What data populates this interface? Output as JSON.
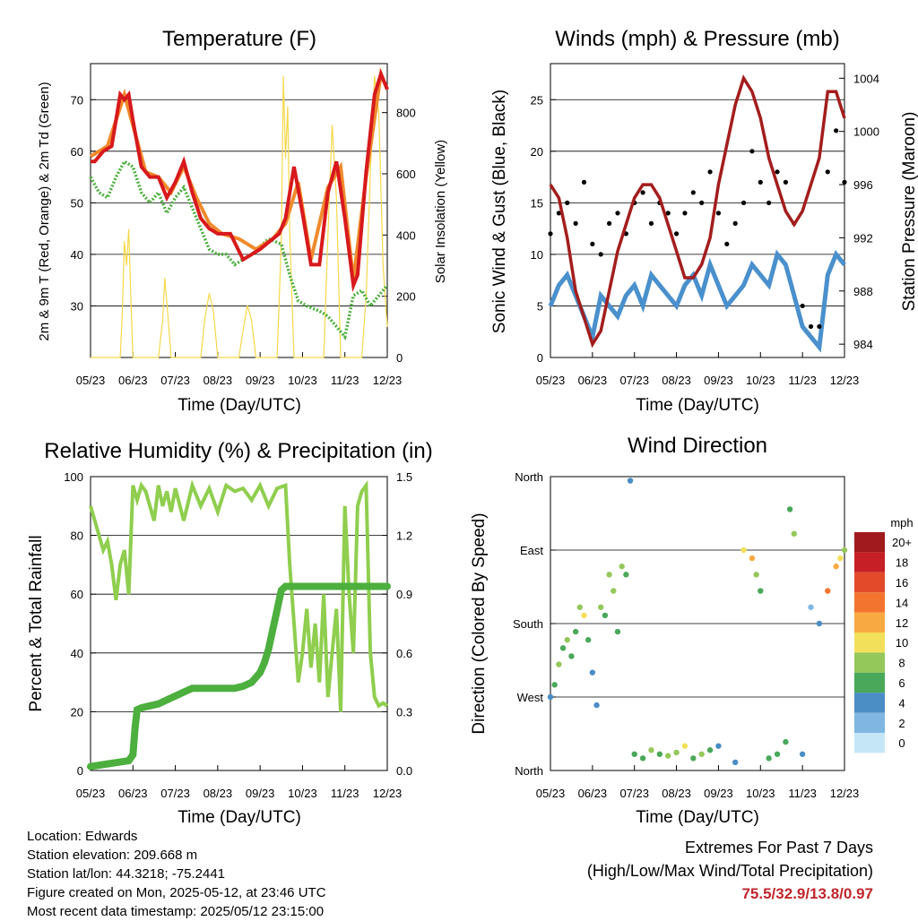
{
  "colors": {
    "temp_2m": "#d7191c",
    "temp_9m": "#f08a2c",
    "dewpoint": "#4caf3e",
    "solar": "#f5d84a",
    "wind": "#4a90cc",
    "gust": "#000000",
    "pressure": "#a31d1d",
    "rh": "#8fce4e",
    "precip": "#4caf3e",
    "extremes": "#c0262d"
  },
  "chart_data": [
    {
      "id": "temperature",
      "type": "line",
      "title": "Temperature (F)",
      "xlabel": "Time (Day/UTC)",
      "ylabel": "2m & 9m T (Red, Orange) & 2m Td (Green)",
      "y2label": "Solar Insolation (Yellow)",
      "x_ticks": [
        "05/23",
        "06/23",
        "07/23",
        "08/23",
        "09/23",
        "10/23",
        "11/23",
        "12/23"
      ],
      "xlim": [
        0,
        7
      ],
      "ylim": [
        20,
        77
      ],
      "y_ticks": [
        30,
        40,
        50,
        60,
        70
      ],
      "y2lim": [
        0,
        960
      ],
      "y2_ticks": [
        0,
        200,
        400,
        600,
        800
      ],
      "grid": true,
      "series": [
        {
          "name": "2m T",
          "axis": "y",
          "x": [
            0,
            0.1,
            0.3,
            0.5,
            0.7,
            0.8,
            0.9,
            1.0,
            1.2,
            1.4,
            1.6,
            1.8,
            2.0,
            2.2,
            2.4,
            2.6,
            2.8,
            3.0,
            3.3,
            3.6,
            4.0,
            4.3,
            4.45,
            4.6,
            4.8,
            5.0,
            5.2,
            5.4,
            5.6,
            5.8,
            6.0,
            6.2,
            6.3,
            6.5,
            6.7,
            6.85,
            7.0
          ],
          "values": [
            58,
            58,
            60,
            61,
            71,
            70,
            71,
            66,
            57,
            55,
            55,
            51,
            54,
            58,
            52,
            47,
            45,
            44,
            44,
            39,
            41,
            43,
            44,
            47,
            57,
            48,
            38,
            38,
            52,
            58,
            47,
            34,
            36,
            56,
            71,
            75,
            72
          ]
        },
        {
          "name": "9m T",
          "axis": "y",
          "x": [
            0,
            0.2,
            0.4,
            0.6,
            0.8,
            1.0,
            1.3,
            1.6,
            1.9,
            2.2,
            2.5,
            2.8,
            3.1,
            3.5,
            3.9,
            4.3,
            4.6,
            4.9,
            5.2,
            5.6,
            5.9,
            6.2,
            6.5,
            6.85,
            7.0
          ],
          "values": [
            59,
            60,
            61,
            66,
            71,
            65,
            56,
            55,
            52,
            57,
            51,
            46,
            44,
            43,
            41,
            43,
            46,
            54,
            39,
            53,
            57,
            35,
            55,
            75,
            72
          ]
        },
        {
          "name": "2m Td",
          "axis": "y",
          "x": [
            0,
            0.2,
            0.4,
            0.6,
            0.8,
            1.0,
            1.2,
            1.4,
            1.6,
            1.8,
            2.0,
            2.2,
            2.4,
            2.6,
            2.8,
            3.0,
            3.2,
            3.4,
            3.8,
            4.2,
            4.5,
            4.7,
            4.9,
            5.1,
            5.4,
            5.6,
            5.8,
            6.0,
            6.2,
            6.4,
            6.6,
            6.8,
            7.0
          ],
          "values": [
            55,
            52,
            51,
            55,
            58,
            57,
            52,
            50,
            52,
            48,
            51,
            53,
            49,
            45,
            41,
            40,
            40,
            38,
            40,
            43,
            42,
            36,
            31,
            30,
            29,
            28,
            26,
            24,
            32,
            33,
            30,
            32,
            34
          ]
        },
        {
          "name": "Solar Insolation",
          "axis": "y2",
          "x": [
            0,
            0.7,
            0.75,
            0.8,
            0.85,
            0.9,
            0.95,
            1.0,
            1.6,
            1.7,
            1.75,
            1.8,
            1.85,
            1.9,
            2.6,
            2.7,
            2.8,
            2.9,
            3.0,
            3.5,
            3.6,
            3.7,
            3.8,
            3.9,
            4.4,
            4.5,
            4.55,
            4.6,
            4.65,
            4.7,
            4.8,
            5.0,
            5.5,
            5.6,
            5.7,
            5.8,
            5.9,
            6.2,
            6.4,
            6.5,
            6.6,
            6.7,
            6.8,
            6.9,
            7.0
          ],
          "values": [
            0,
            0,
            150,
            380,
            300,
            420,
            200,
            0,
            0,
            120,
            260,
            180,
            90,
            0,
            0,
            130,
            210,
            150,
            0,
            0,
            90,
            170,
            120,
            0,
            0,
            380,
            920,
            650,
            820,
            400,
            0,
            0,
            0,
            400,
            760,
            520,
            0,
            0,
            0,
            200,
            600,
            920,
            800,
            300,
            100
          ]
        }
      ]
    },
    {
      "id": "winds",
      "type": "scatter",
      "title": "Winds (mph) & Pressure (mb)",
      "xlabel": "Time (Day/UTC)",
      "ylabel": "Sonic Wind & Gust (Blue, Black)",
      "y2label": "Station Pressure (Maroon)",
      "x_ticks": [
        "05/23",
        "06/23",
        "07/23",
        "08/23",
        "09/23",
        "10/23",
        "11/23",
        "12/23"
      ],
      "xlim": [
        0,
        7
      ],
      "ylim": [
        0,
        28.5
      ],
      "y_ticks": [
        0,
        5,
        10,
        15,
        20,
        25
      ],
      "y2lim": [
        983,
        1005.1
      ],
      "y2_ticks": [
        984,
        988,
        992,
        996,
        1000,
        1004
      ],
      "grid": true,
      "series": [
        {
          "name": "Sonic Wind",
          "x": [
            0,
            0.2,
            0.4,
            0.6,
            0.8,
            1.0,
            1.2,
            1.4,
            1.6,
            1.8,
            2.0,
            2.2,
            2.4,
            2.6,
            2.8,
            3.0,
            3.2,
            3.4,
            3.6,
            3.8,
            4.0,
            4.2,
            4.4,
            4.6,
            4.8,
            5.0,
            5.2,
            5.4,
            5.6,
            5.8,
            6.0,
            6.2,
            6.4,
            6.6,
            6.8,
            7.0
          ],
          "values": [
            5,
            7,
            8,
            6,
            4,
            2,
            6,
            5,
            4,
            6,
            7,
            5,
            8,
            7,
            6,
            5,
            7,
            8,
            6,
            9,
            7,
            5,
            6,
            7,
            9,
            8,
            7,
            10,
            9,
            6,
            3,
            2,
            1,
            8,
            10,
            9
          ]
        },
        {
          "name": "Gust",
          "x": [
            0,
            0.2,
            0.4,
            0.6,
            0.8,
            1.0,
            1.2,
            1.4,
            1.6,
            1.8,
            2.0,
            2.2,
            2.4,
            2.6,
            2.8,
            3.0,
            3.2,
            3.4,
            3.6,
            3.8,
            4.0,
            4.2,
            4.4,
            4.6,
            4.8,
            5.0,
            5.2,
            5.4,
            5.6,
            5.8,
            6.0,
            6.2,
            6.4,
            6.6,
            6.8,
            7.0
          ],
          "values": [
            12,
            14,
            15,
            13,
            17,
            11,
            10,
            13,
            14,
            12,
            15,
            16,
            13,
            15,
            14,
            12,
            14,
            16,
            15,
            18,
            14,
            11,
            13,
            15,
            20,
            17,
            15,
            18,
            17,
            13,
            5,
            3,
            3,
            18,
            22,
            17
          ]
        },
        {
          "name": "Station Pressure",
          "axis": "y2",
          "x": [
            0,
            0.2,
            0.4,
            0.6,
            0.8,
            1.0,
            1.2,
            1.4,
            1.6,
            1.8,
            2.0,
            2.2,
            2.4,
            2.6,
            2.8,
            3.0,
            3.2,
            3.4,
            3.6,
            3.8,
            4.0,
            4.2,
            4.4,
            4.6,
            4.8,
            5.0,
            5.2,
            5.4,
            5.6,
            5.8,
            6.0,
            6.2,
            6.4,
            6.6,
            6.8,
            7.0
          ],
          "values": [
            996,
            995,
            992,
            988,
            986,
            984,
            985,
            988,
            991,
            993,
            995,
            996,
            996,
            995,
            993,
            991,
            989,
            989,
            990,
            992,
            996,
            999,
            1002,
            1004,
            1003,
            1001,
            998,
            996,
            994,
            993,
            994,
            996,
            998,
            1003,
            1003,
            1001
          ]
        }
      ]
    },
    {
      "id": "humidity",
      "type": "line",
      "title": "Relative Humidity (%) & Precipitation (in)",
      "xlabel": "Time (Day/UTC)",
      "ylabel": "Percent & Total Rainfall",
      "x_ticks": [
        "05/23",
        "06/23",
        "07/23",
        "08/23",
        "09/23",
        "10/23",
        "11/23",
        "12/23"
      ],
      "xlim": [
        0,
        7
      ],
      "ylim": [
        0,
        100
      ],
      "y_ticks": [
        0,
        20,
        40,
        60,
        80,
        100
      ],
      "y2lim": [
        0,
        1.5
      ],
      "y2_ticks": [
        "0.0",
        "0.3",
        "0.6",
        "0.9",
        "1.2",
        "1.5"
      ],
      "grid": true,
      "series": [
        {
          "name": "Relative Humidity",
          "x": [
            0,
            0.1,
            0.2,
            0.3,
            0.4,
            0.5,
            0.6,
            0.7,
            0.8,
            0.9,
            1.0,
            1.1,
            1.2,
            1.3,
            1.4,
            1.5,
            1.6,
            1.7,
            1.8,
            1.9,
            2.0,
            2.2,
            2.4,
            2.6,
            2.8,
            3.0,
            3.2,
            3.4,
            3.6,
            3.8,
            4.0,
            4.2,
            4.4,
            4.6,
            4.7,
            4.8,
            4.9,
            5.0,
            5.1,
            5.2,
            5.3,
            5.4,
            5.5,
            5.6,
            5.7,
            5.8,
            5.9,
            6.0,
            6.1,
            6.2,
            6.3,
            6.4,
            6.5,
            6.6,
            6.7,
            6.8,
            6.9,
            7.0
          ],
          "values": [
            90,
            85,
            80,
            75,
            78,
            70,
            58,
            70,
            75,
            60,
            97,
            92,
            97,
            95,
            90,
            85,
            97,
            90,
            95,
            88,
            96,
            85,
            97,
            90,
            96,
            88,
            97,
            95,
            96,
            92,
            97,
            90,
            96,
            97,
            70,
            50,
            30,
            40,
            55,
            35,
            50,
            30,
            60,
            25,
            40,
            55,
            20,
            90,
            60,
            40,
            90,
            95,
            97,
            40,
            25,
            22,
            23,
            22
          ]
        },
        {
          "name": "Total Rainfall",
          "axis": "y2",
          "x": [
            0,
            0.9,
            1.0,
            1.05,
            1.1,
            1.2,
            1.4,
            1.6,
            1.8,
            2.0,
            2.2,
            2.4,
            2.6,
            2.8,
            3.0,
            3.2,
            3.4,
            3.6,
            3.8,
            4.0,
            4.1,
            4.2,
            4.3,
            4.4,
            4.5,
            4.6,
            4.7,
            5.0,
            5.5,
            6.0,
            6.5,
            7.0
          ],
          "values": [
            0.02,
            0.05,
            0.08,
            0.22,
            0.31,
            0.32,
            0.33,
            0.34,
            0.36,
            0.38,
            0.4,
            0.42,
            0.42,
            0.42,
            0.42,
            0.42,
            0.42,
            0.43,
            0.45,
            0.5,
            0.55,
            0.62,
            0.72,
            0.82,
            0.92,
            0.94,
            0.94,
            0.94,
            0.94,
            0.94,
            0.94,
            0.94
          ]
        }
      ]
    },
    {
      "id": "wind_direction",
      "type": "scatter",
      "title": "Wind Direction",
      "xlabel": "Time (Day/UTC)",
      "ylabel": "Direction (Colored By Speed)",
      "x_ticks": [
        "05/23",
        "06/23",
        "07/23",
        "08/23",
        "09/23",
        "10/23",
        "11/23",
        "12/23"
      ],
      "xlim": [
        0,
        7
      ],
      "y_ticks": [
        "North",
        "East",
        "South",
        "West",
        "North"
      ],
      "ylim": [
        0,
        360
      ],
      "grid": true,
      "legend": {
        "title": "mph",
        "placement": "right",
        "labels": [
          "20+",
          "18",
          "16",
          "14",
          "12",
          "10",
          "8",
          "6",
          "4",
          "2",
          "0"
        ],
        "colors": [
          "#a11a1d",
          "#c62026",
          "#e24a2a",
          "#f2742e",
          "#f9a942",
          "#f3e05a",
          "#94c85a",
          "#4aa85a",
          "#4b8dc5",
          "#7fb7e2",
          "#c5e6f7"
        ]
      },
      "series": [
        {
          "name": "Direction",
          "x": [
            0,
            0.1,
            0.2,
            0.3,
            0.4,
            0.5,
            0.6,
            0.7,
            0.8,
            0.9,
            1.0,
            1.1,
            1.2,
            1.3,
            1.4,
            1.5,
            1.6,
            1.7,
            1.8,
            1.9,
            2.0,
            2.2,
            2.4,
            2.6,
            2.8,
            3.0,
            3.2,
            3.4,
            3.6,
            3.8,
            4.0,
            4.4,
            4.6,
            4.8,
            4.9,
            5.0,
            5.2,
            5.4,
            5.6,
            5.7,
            5.8,
            6.0,
            6.2,
            6.4,
            6.6,
            6.8,
            6.9,
            7.0
          ],
          "values": [
            90,
            105,
            130,
            150,
            160,
            140,
            170,
            200,
            190,
            160,
            120,
            80,
            200,
            190,
            240,
            220,
            170,
            250,
            240,
            355,
            20,
            15,
            25,
            20,
            18,
            22,
            30,
            15,
            20,
            25,
            30,
            10,
            270,
            260,
            240,
            220,
            15,
            20,
            35,
            320,
            290,
            20,
            200,
            180,
            220,
            250,
            260,
            270
          ],
          "speeds": [
            4,
            6,
            7,
            6,
            8,
            6,
            5,
            8,
            10,
            6,
            4,
            3,
            8,
            6,
            7,
            7,
            5,
            8,
            6,
            4,
            6,
            5,
            7,
            6,
            8,
            8,
            10,
            6,
            7,
            5,
            4,
            3,
            10,
            12,
            8,
            6,
            5,
            6,
            6,
            6,
            8,
            3,
            2,
            3,
            14,
            12,
            10,
            8
          ]
        }
      ]
    }
  ],
  "footer": {
    "location": "Location: Edwards",
    "elevation": "Station elevation: 209.668 m",
    "latlon": "Station lat/lon: 44.3218; -75.2441",
    "created": "Figure created on Mon, 2025-05-12, at 23:46 UTC",
    "recent": "Most recent data timestamp: 2025/05/12 23:15:00"
  },
  "extremes": {
    "heading": "Extremes For Past 7 Days",
    "subheading": "(High/Low/Max Wind/Total Precipitation)",
    "values": "75.5/32.9/13.8/0.97"
  }
}
